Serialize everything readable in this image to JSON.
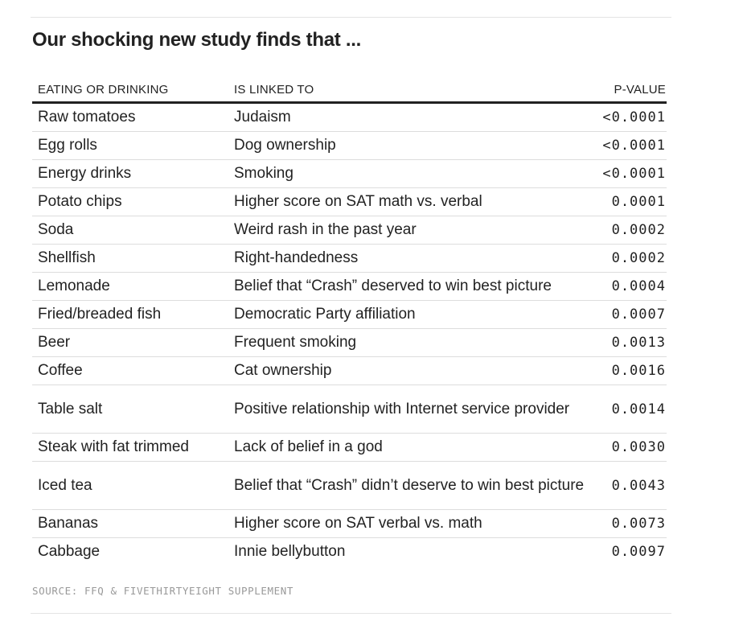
{
  "title": "Our shocking new study finds that ...",
  "table": {
    "headers": [
      "EATING OR DRINKING",
      "IS LINKED TO",
      "P-VALUE"
    ],
    "rows": [
      {
        "food": "Raw tomatoes",
        "linked": "Judaism",
        "p": "<0.0001"
      },
      {
        "food": "Egg rolls",
        "linked": "Dog ownership",
        "p": "<0.0001"
      },
      {
        "food": "Energy drinks",
        "linked": "Smoking",
        "p": "<0.0001"
      },
      {
        "food": "Potato chips",
        "linked": "Higher score on SAT math vs. verbal",
        "p": "0.0001"
      },
      {
        "food": "Soda",
        "linked": "Weird rash in the past year",
        "p": "0.0002"
      },
      {
        "food": "Shellfish",
        "linked": "Right-handedness",
        "p": "0.0002"
      },
      {
        "food": "Lemonade",
        "linked": "Belief that “Crash” deserved to win best picture",
        "p": "0.0004"
      },
      {
        "food": "Fried/breaded fish",
        "linked": "Democratic Party affiliation",
        "p": "0.0007"
      },
      {
        "food": "Beer",
        "linked": "Frequent smoking",
        "p": "0.0013"
      },
      {
        "food": "Coffee",
        "linked": "Cat ownership",
        "p": "0.0016"
      },
      {
        "food": "Table salt",
        "linked": "Positive relationship with Internet service provider",
        "p": "0.0014"
      },
      {
        "food": "Steak with fat trimmed",
        "linked": "Lack of belief in a god",
        "p": "0.0030"
      },
      {
        "food": "Iced tea",
        "linked": "Belief that “Crash” didn’t deserve to win best picture",
        "p": "0.0043"
      },
      {
        "food": "Bananas",
        "linked": "Higher score on SAT verbal vs. math",
        "p": "0.0073"
      },
      {
        "food": "Cabbage",
        "linked": "Innie bellybutton",
        "p": "0.0097"
      }
    ]
  },
  "source": "SOURCE: FFQ & FIVETHIRTYEIGHT SUPPLEMENT"
}
